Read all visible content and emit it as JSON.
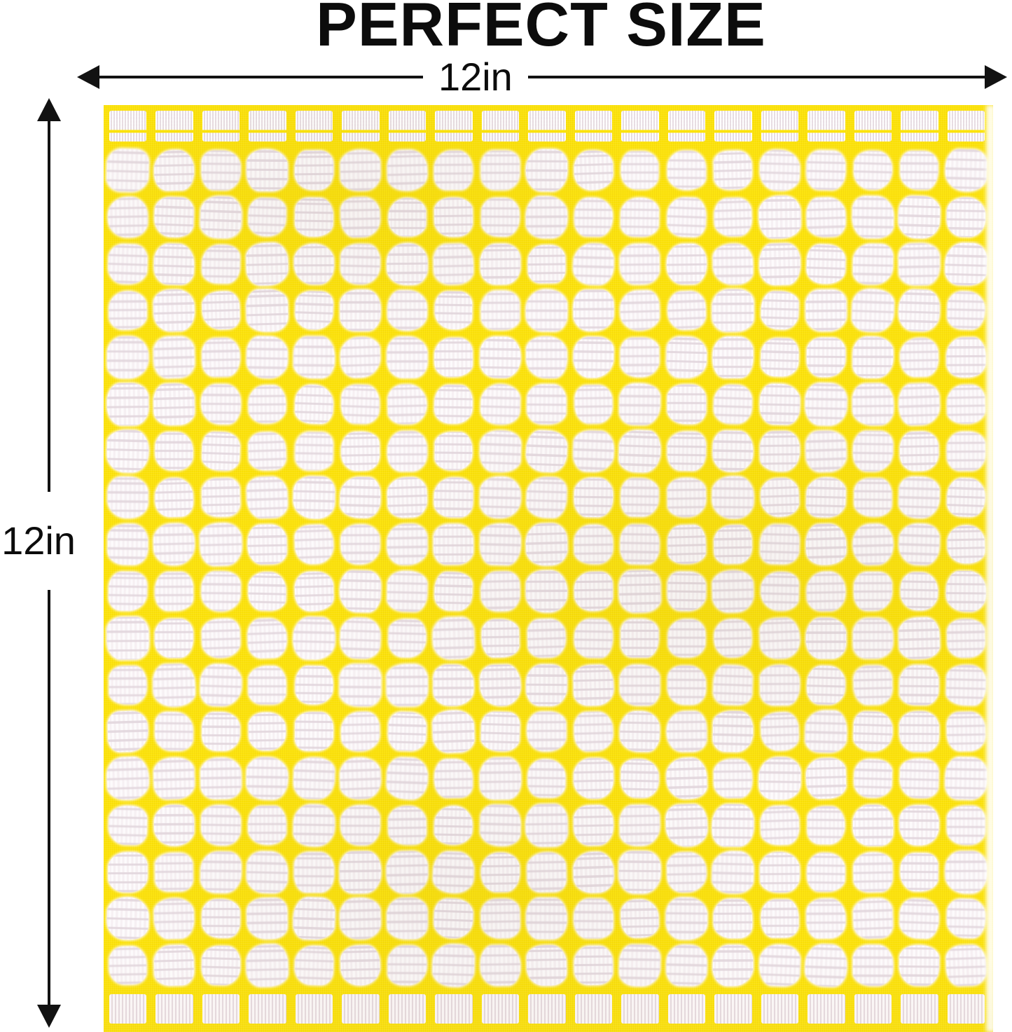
{
  "title": {
    "text": "PERFECT SIZE"
  },
  "dimensions": {
    "width_label": "12in",
    "height_label": "12in"
  },
  "annotation": {
    "line_color": "#121212"
  },
  "towel": {
    "cols": 19,
    "body_rows": 18,
    "colors": {
      "yellow": "#FCE30B",
      "terry_white": "#FBF6F8",
      "terry_shadow": "#E6DAE0",
      "hem_white": "#F6EFF2"
    }
  }
}
